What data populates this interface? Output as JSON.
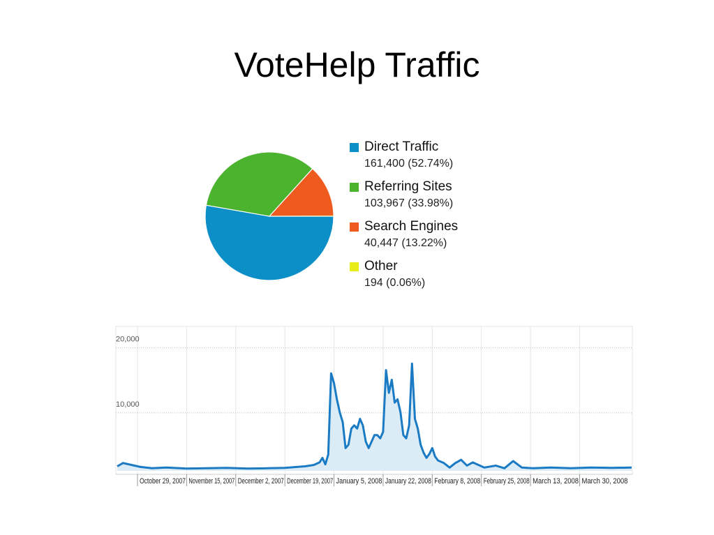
{
  "title": "VoteHelp Traffic",
  "pie": {
    "type": "pie",
    "slices": [
      {
        "name": "Direct Traffic",
        "value_text": "161,400 (52.74%)",
        "value": 161400,
        "percent": 52.74,
        "color": "#0b8fc6"
      },
      {
        "name": "Referring Sites",
        "value_text": "103,967 (33.98%)",
        "value": 103967,
        "percent": 33.98,
        "color": "#4cb32e"
      },
      {
        "name": "Search Engines",
        "value_text": "40,447 (13.22%)",
        "value": 40447,
        "percent": 13.22,
        "color": "#ef5a1f"
      },
      {
        "name": "Other",
        "value_text": "194 (0.06%)",
        "value": 194,
        "percent": 0.06,
        "color": "#e8ec1a"
      }
    ]
  },
  "chart_data": {
    "type": "area",
    "x_start": "2007-10-22",
    "x_end": "2008-04-17",
    "ylim": [
      0,
      22000
    ],
    "yticks": [
      "20,000",
      "10,000"
    ],
    "xticks": [
      {
        "label": "October 29, 2007",
        "date": "2007-10-29"
      },
      {
        "label": "November 15, 2007",
        "date": "2007-11-15"
      },
      {
        "label": "December 2, 2007",
        "date": "2007-12-02"
      },
      {
        "label": "December 19, 2007",
        "date": "2007-12-19"
      },
      {
        "label": "January 5, 2008",
        "date": "2008-01-05"
      },
      {
        "label": "January 22, 2008",
        "date": "2008-01-22"
      },
      {
        "label": "February 8, 2008",
        "date": "2008-02-08"
      },
      {
        "label": "February 25, 2008",
        "date": "2008-02-25"
      },
      {
        "label": "March 13, 2008",
        "date": "2008-03-13"
      },
      {
        "label": "March 30, 2008",
        "date": "2008-03-30"
      }
    ],
    "series": [
      {
        "color": "#1a7ac4",
        "fill": "#dcecf6",
        "points": [
          [
            "2007-10-22",
            700
          ],
          [
            "2007-10-24",
            1200
          ],
          [
            "2007-10-27",
            900
          ],
          [
            "2007-10-30",
            600
          ],
          [
            "2007-11-03",
            400
          ],
          [
            "2007-11-08",
            500
          ],
          [
            "2007-11-15",
            350
          ],
          [
            "2007-11-22",
            400
          ],
          [
            "2007-11-29",
            450
          ],
          [
            "2007-12-06",
            350
          ],
          [
            "2007-12-13",
            400
          ],
          [
            "2007-12-19",
            450
          ],
          [
            "2007-12-26",
            700
          ],
          [
            "2007-12-29",
            900
          ],
          [
            "2007-12-31",
            1300
          ],
          [
            "2008-01-01",
            2000
          ],
          [
            "2008-01-02",
            1000
          ],
          [
            "2008-01-03",
            2500
          ],
          [
            "2008-01-04",
            15000
          ],
          [
            "2008-01-05",
            13500
          ],
          [
            "2008-01-06",
            11000
          ],
          [
            "2008-01-07",
            9000
          ],
          [
            "2008-01-08",
            7500
          ],
          [
            "2008-01-09",
            3500
          ],
          [
            "2008-01-10",
            4000
          ],
          [
            "2008-01-11",
            6500
          ],
          [
            "2008-01-12",
            7000
          ],
          [
            "2008-01-13",
            6500
          ],
          [
            "2008-01-14",
            8000
          ],
          [
            "2008-01-15",
            7000
          ],
          [
            "2008-01-16",
            4500
          ],
          [
            "2008-01-17",
            3500
          ],
          [
            "2008-01-18",
            4500
          ],
          [
            "2008-01-19",
            5500
          ],
          [
            "2008-01-20",
            5500
          ],
          [
            "2008-01-21",
            5000
          ],
          [
            "2008-01-22",
            6000
          ],
          [
            "2008-01-23",
            15500
          ],
          [
            "2008-01-24",
            12000
          ],
          [
            "2008-01-25",
            14000
          ],
          [
            "2008-01-26",
            10500
          ],
          [
            "2008-01-27",
            11000
          ],
          [
            "2008-01-28",
            9000
          ],
          [
            "2008-01-29",
            5500
          ],
          [
            "2008-01-30",
            5000
          ],
          [
            "2008-01-31",
            7000
          ],
          [
            "2008-02-01",
            16500
          ],
          [
            "2008-02-02",
            8000
          ],
          [
            "2008-02-03",
            6500
          ],
          [
            "2008-02-04",
            4000
          ],
          [
            "2008-02-05",
            2800
          ],
          [
            "2008-02-06",
            2000
          ],
          [
            "2008-02-07",
            2600
          ],
          [
            "2008-02-08",
            3500
          ],
          [
            "2008-02-09",
            2200
          ],
          [
            "2008-02-10",
            1600
          ],
          [
            "2008-02-12",
            1200
          ],
          [
            "2008-02-14",
            500
          ],
          [
            "2008-02-16",
            1200
          ],
          [
            "2008-02-18",
            1700
          ],
          [
            "2008-02-20",
            800
          ],
          [
            "2008-02-22",
            1300
          ],
          [
            "2008-02-24",
            900
          ],
          [
            "2008-02-26",
            500
          ],
          [
            "2008-03-01",
            800
          ],
          [
            "2008-03-04",
            400
          ],
          [
            "2008-03-07",
            1500
          ],
          [
            "2008-03-10",
            500
          ],
          [
            "2008-03-14",
            400
          ],
          [
            "2008-03-20",
            500
          ],
          [
            "2008-03-27",
            400
          ],
          [
            "2008-04-03",
            500
          ],
          [
            "2008-04-10",
            450
          ],
          [
            "2008-04-17",
            500
          ]
        ]
      }
    ],
    "grid": true
  }
}
